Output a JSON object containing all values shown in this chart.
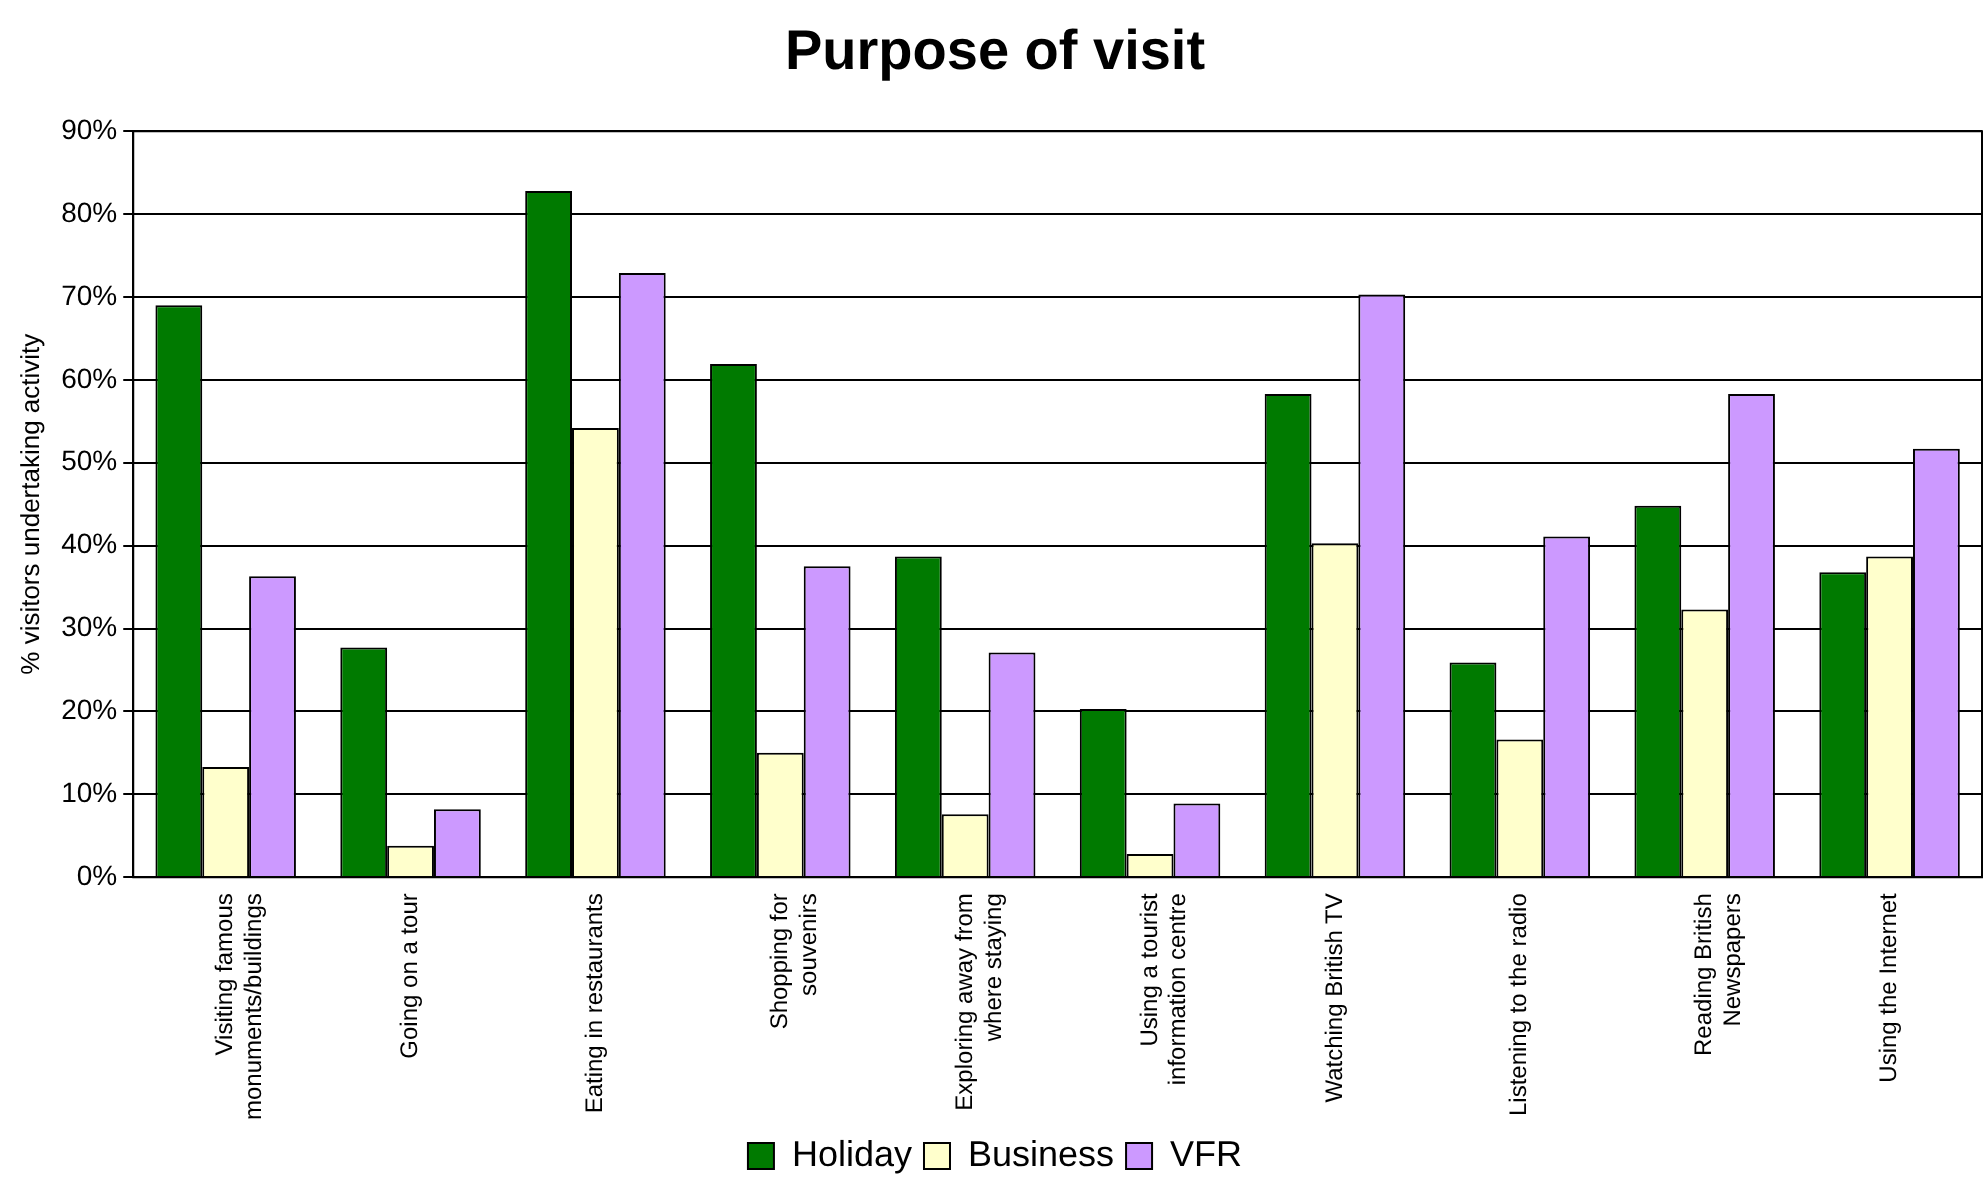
{
  "chart_data": {
    "type": "bar",
    "title": "Purpose of visit",
    "ylabel": "% visitors undertaking activity",
    "categories": [
      "Visiting famous\nmonuments/buildings",
      "Going on a tour",
      "Eating in restaurants",
      "Shopping for\nsouvenirs",
      "Exploring away from\nwhere staying",
      "Using a tourist\ninformation centre",
      "Watching British TV",
      "Listening to the radio",
      "Reading British\nNewspapers",
      "Using the Internet"
    ],
    "series": [
      {
        "name": "Holiday",
        "color": "#007a00",
        "values": [
          69,
          27.7,
          82.8,
          61.9,
          38.7,
          20.3,
          58.3,
          25.9,
          44.8,
          36.8
        ]
      },
      {
        "name": "Business",
        "color": "#ffffcc",
        "values": [
          13.3,
          3.8,
          54.2,
          15,
          7.6,
          2.8,
          40.3,
          16.6,
          32.3,
          38.7
        ]
      },
      {
        "name": "VFR",
        "color": "#cc99ff",
        "values": [
          36.3,
          8.2,
          72.9,
          37.5,
          27.1,
          8.9,
          70.3,
          41.1,
          58.3,
          51.7
        ]
      }
    ],
    "ylim": [
      0,
      90
    ],
    "yticks": [
      {
        "value": 0,
        "label": "0%"
      },
      {
        "value": 10,
        "label": "10%"
      },
      {
        "value": 20,
        "label": "20%"
      },
      {
        "value": 30,
        "label": "30%"
      },
      {
        "value": 40,
        "label": "40%"
      },
      {
        "value": 50,
        "label": "50%"
      },
      {
        "value": 60,
        "label": "60%"
      },
      {
        "value": 70,
        "label": "70%"
      },
      {
        "value": 80,
        "label": "80%"
      },
      {
        "value": 90,
        "label": "90%"
      }
    ],
    "grid": "y",
    "legend": "bottom"
  }
}
